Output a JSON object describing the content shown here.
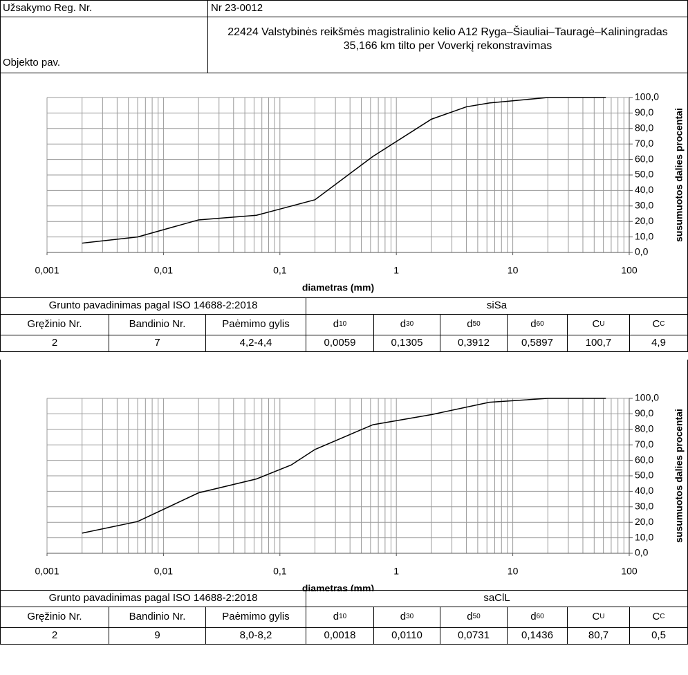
{
  "header": {
    "order_label": "Užsakymo Reg. Nr.",
    "order_value": "Nr 23-0012",
    "object_label": "Objekto pav.",
    "object_value": "22424 Valstybinės reikšmės magistralinio kelio A12 Ryga–Šiauliai–Tauragė–Kaliningradas 35,166 km tilto per Voverkį rekonstravimas"
  },
  "chart_data": [
    {
      "type": "line",
      "xlabel": "diametras (mm)",
      "ylabel": "susumuotos dalies procentai",
      "xscale": "log",
      "grid": true,
      "x": [
        0.002,
        0.006,
        0.02,
        0.063,
        0.2,
        0.63,
        2,
        4,
        6.3,
        20,
        63
      ],
      "series": [
        {
          "color": "#000000",
          "values": [
            6,
            10,
            21,
            24,
            34,
            62,
            86,
            94,
            96.5,
            100,
            100
          ]
        }
      ],
      "xlim": [
        0.001,
        100
      ],
      "xticks": [
        {
          "value": 0.001,
          "label": "0,001"
        },
        {
          "value": 0.01,
          "label": "0,01"
        },
        {
          "value": 0.1,
          "label": "0,1"
        },
        1,
        10,
        100
      ],
      "ylim": [
        0,
        100
      ],
      "yticks": [
        {
          "value": 0,
          "label": "0,0"
        },
        {
          "value": 10,
          "label": "10,0"
        },
        {
          "value": 20,
          "label": "20,0"
        },
        {
          "value": 30,
          "label": "30,0"
        },
        {
          "value": 40,
          "label": "40,0"
        },
        {
          "value": 50,
          "label": "50,0"
        },
        {
          "value": 60,
          "label": "60,0"
        },
        {
          "value": 70,
          "label": "70,0"
        },
        {
          "value": 80,
          "label": "80,0"
        },
        {
          "value": 90,
          "label": "90,0"
        },
        {
          "value": 100,
          "label": "100,0"
        }
      ]
    },
    {
      "type": "line",
      "xlabel": "diametras (mm)",
      "ylabel": "susumuotos dalies procentai",
      "xscale": "log",
      "grid": true,
      "x": [
        0.002,
        0.006,
        0.02,
        0.063,
        0.125,
        0.2,
        0.63,
        2,
        6.3,
        20,
        63
      ],
      "series": [
        {
          "color": "#000000",
          "values": [
            13,
            20.5,
            39,
            48,
            57,
            67,
            83,
            89.5,
            97.5,
            100,
            100
          ]
        }
      ],
      "xlim": [
        0.001,
        100
      ],
      "xticks": [
        {
          "value": 0.001,
          "label": "0,001"
        },
        {
          "value": 0.01,
          "label": "0,01"
        },
        {
          "value": 0.1,
          "label": "0,1"
        },
        1,
        10,
        100
      ],
      "ylim": [
        0,
        100
      ],
      "yticks": [
        {
          "value": 0,
          "label": "0,0"
        },
        {
          "value": 10,
          "label": "10,0"
        },
        {
          "value": 20,
          "label": "20,0"
        },
        {
          "value": 30,
          "label": "30,0"
        },
        {
          "value": 40,
          "label": "40,0"
        },
        {
          "value": 50,
          "label": "50,0"
        },
        {
          "value": 60,
          "label": "60,0"
        },
        {
          "value": 70,
          "label": "70,0"
        },
        {
          "value": 80,
          "label": "80,0"
        },
        {
          "value": 90,
          "label": "90,0"
        },
        {
          "value": 100,
          "label": "100,0"
        }
      ]
    }
  ],
  "tables": [
    {
      "title": "Grunto pavadinimas pagal ISO 14688-2:2018",
      "name": "siSa",
      "headers": [
        {
          "text": "Gręžinio Nr."
        },
        {
          "text": "Bandinio Nr."
        },
        {
          "text": "Paėmimo gylis"
        },
        {
          "text": "d",
          "sub": "10"
        },
        {
          "text": "d",
          "sub": "30"
        },
        {
          "text": "d",
          "sub": "50"
        },
        {
          "text": "d",
          "sub": "60"
        },
        {
          "text": "C",
          "sub": "U"
        },
        {
          "text": "C",
          "sub": "C"
        }
      ],
      "row": [
        "2",
        "7",
        "4,2-4,4",
        "0,0059",
        "0,1305",
        "0,3912",
        "0,5897",
        "100,7",
        "4,9"
      ]
    },
    {
      "title": "Grunto pavadinimas pagal ISO 14688-2:2018",
      "name": "saClL",
      "headers": [
        {
          "text": "Gręžinio Nr."
        },
        {
          "text": "Bandinio Nr."
        },
        {
          "text": "Paėmimo gylis"
        },
        {
          "text": "d",
          "sub": "10"
        },
        {
          "text": "d",
          "sub": "30"
        },
        {
          "text": "d",
          "sub": "50"
        },
        {
          "text": "d",
          "sub": "60"
        },
        {
          "text": "C",
          "sub": "U"
        },
        {
          "text": "C",
          "sub": "C"
        }
      ],
      "row": [
        "2",
        "9",
        "8,0-8,2",
        "0,0018",
        "0,0110",
        "0,0731",
        "0,1436",
        "80,7",
        "0,5"
      ]
    }
  ]
}
